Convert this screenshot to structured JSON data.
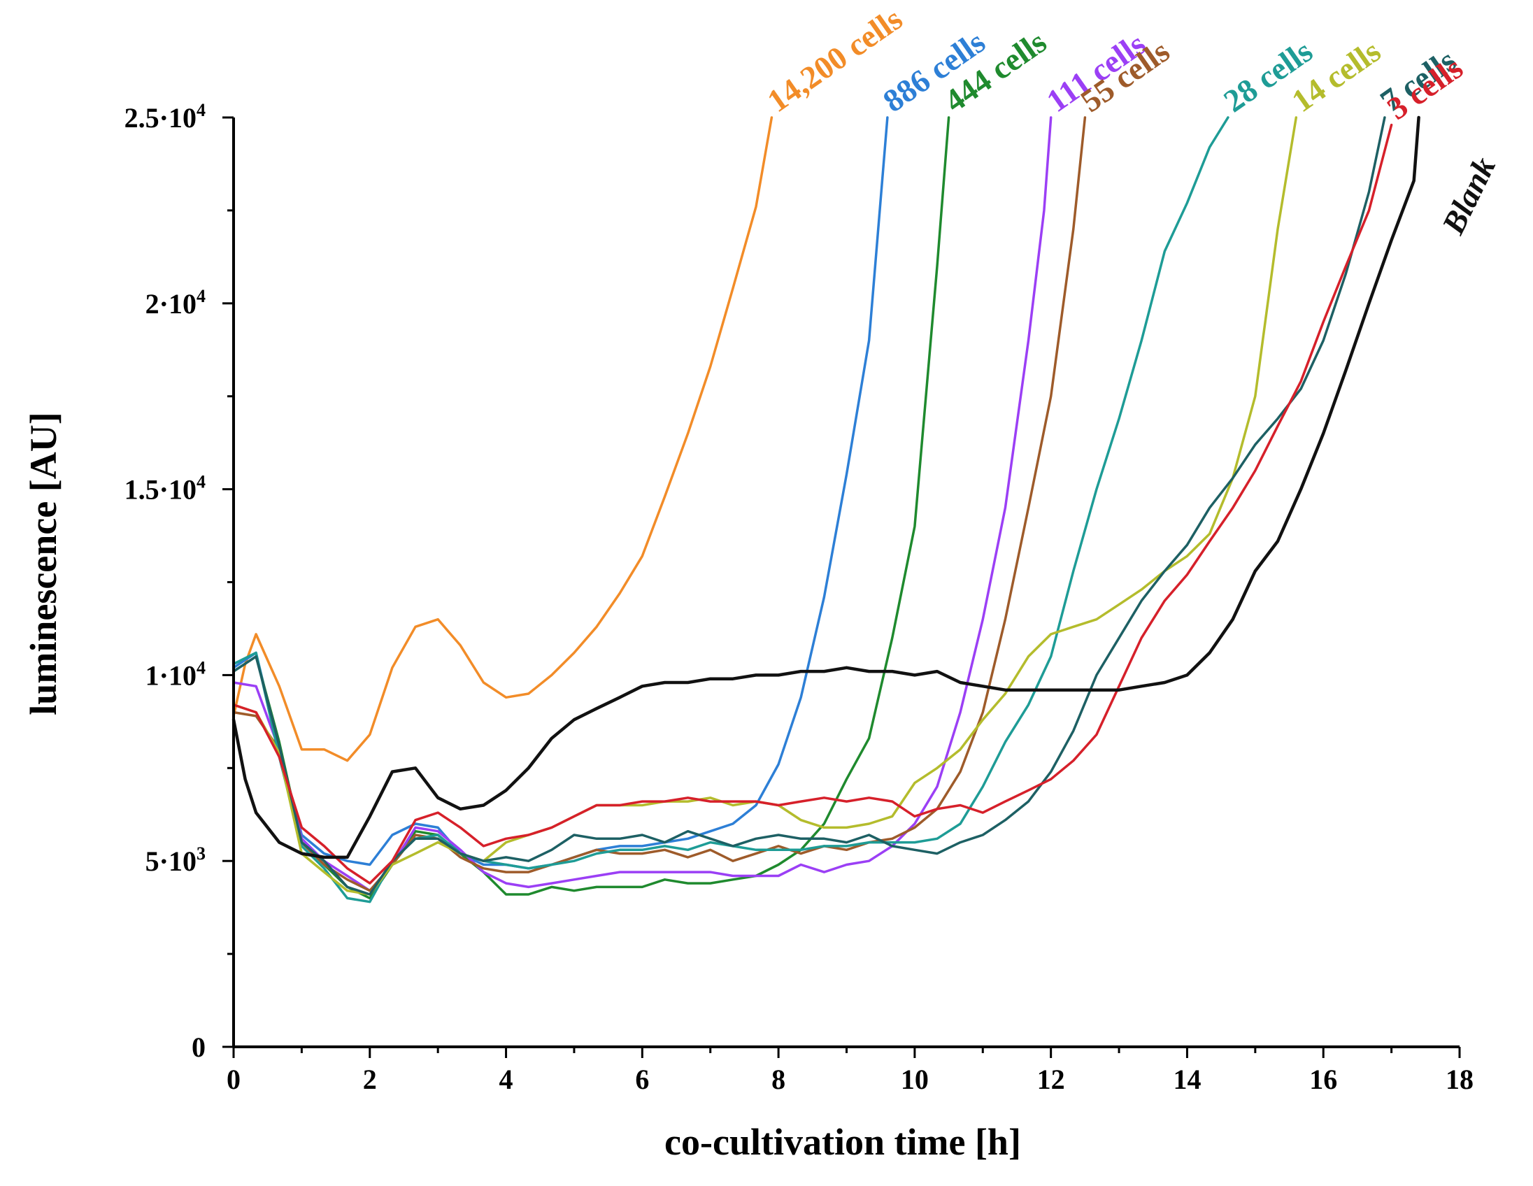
{
  "chart_data": {
    "type": "line",
    "title": "",
    "xlabel": "co-cultivation time [h]",
    "ylabel": "luminescence [AU]",
    "xlim": [
      0,
      18
    ],
    "ylim": [
      0,
      25000
    ],
    "x_ticks": [
      0,
      2,
      4,
      6,
      8,
      10,
      12,
      14,
      16,
      18
    ],
    "x_tick_labels": [
      "0",
      "2",
      "4",
      "6",
      "8",
      "10",
      "12",
      "14",
      "16",
      "18"
    ],
    "y_ticks": [
      {
        "value": 0,
        "base": "0",
        "exp": ""
      },
      {
        "value": 5000,
        "base": "5·10",
        "exp": "3"
      },
      {
        "value": 10000,
        "base": "1·10",
        "exp": "4"
      },
      {
        "value": 15000,
        "base": "1.5·10",
        "exp": "4"
      },
      {
        "value": 20000,
        "base": "2·10",
        "exp": "4"
      },
      {
        "value": 25000,
        "base": "2.5·10",
        "exp": "4"
      }
    ],
    "series": [
      {
        "name": "14,200 cells",
        "color": "#f28c28",
        "x": [
          0,
          0.17,
          0.33,
          0.67,
          1,
          1.33,
          1.67,
          2,
          2.33,
          2.67,
          3,
          3.33,
          3.67,
          4,
          4.33,
          4.67,
          5,
          5.33,
          5.67,
          6,
          6.33,
          6.67,
          7,
          7.33,
          7.67,
          7.9
        ],
        "y": [
          8900,
          10300,
          11100,
          9700,
          8000,
          8000,
          7700,
          8400,
          10200,
          11300,
          11500,
          10800,
          9800,
          9400,
          9500,
          10000,
          10600,
          11300,
          12200,
          13200,
          14800,
          16500,
          18300,
          20400,
          22600,
          25000
        ]
      },
      {
        "name": "886 cells",
        "color": "#2d7fd6",
        "x": [
          0,
          0.33,
          0.67,
          1,
          1.33,
          1.67,
          2,
          2.33,
          2.67,
          3,
          3.33,
          3.67,
          4,
          4.33,
          4.67,
          5,
          5.33,
          5.67,
          6,
          6.33,
          6.67,
          7,
          7.33,
          7.67,
          8,
          8.33,
          8.67,
          9,
          9.33,
          9.6
        ],
        "y": [
          10200,
          10600,
          8000,
          5700,
          5200,
          5000,
          4900,
          5700,
          6000,
          5900,
          5200,
          4900,
          4900,
          4800,
          4900,
          5100,
          5300,
          5400,
          5400,
          5500,
          5600,
          5800,
          6000,
          6500,
          7600,
          9400,
          12100,
          15400,
          19000,
          25000
        ]
      },
      {
        "name": "444 cells",
        "color": "#1f8a2e",
        "x": [
          0,
          0.33,
          0.67,
          1,
          1.33,
          1.67,
          2,
          2.33,
          2.67,
          3,
          3.33,
          3.67,
          4,
          4.33,
          4.67,
          5,
          5.33,
          5.67,
          6,
          6.33,
          6.67,
          7,
          7.33,
          7.67,
          8,
          8.33,
          8.67,
          9,
          9.33,
          9.67,
          10,
          10.33,
          10.5
        ],
        "y": [
          10100,
          10500,
          8200,
          5500,
          4900,
          4300,
          4000,
          4900,
          5800,
          5700,
          5200,
          4700,
          4100,
          4100,
          4300,
          4200,
          4300,
          4300,
          4300,
          4500,
          4400,
          4400,
          4500,
          4600,
          4900,
          5300,
          6000,
          7200,
          8300,
          11000,
          14000,
          21000,
          25000
        ]
      },
      {
        "name": "111 cells",
        "color": "#9b3ff5",
        "x": [
          0,
          0.33,
          0.67,
          1,
          1.33,
          1.67,
          2,
          2.33,
          2.67,
          3,
          3.33,
          3.67,
          4,
          4.33,
          4.67,
          5,
          5.33,
          5.67,
          6,
          6.33,
          6.67,
          7,
          7.33,
          7.67,
          8,
          8.33,
          8.67,
          9,
          9.33,
          9.67,
          10,
          10.33,
          10.67,
          11,
          11.33,
          11.67,
          11.9,
          12
        ],
        "y": [
          9800,
          9700,
          8000,
          5600,
          5000,
          4600,
          4200,
          4900,
          5900,
          5800,
          5300,
          4700,
          4400,
          4300,
          4400,
          4500,
          4600,
          4700,
          4700,
          4700,
          4700,
          4700,
          4600,
          4600,
          4600,
          4900,
          4700,
          4900,
          5000,
          5400,
          6000,
          7000,
          9000,
          11500,
          14500,
          19000,
          22500,
          25000
        ]
      },
      {
        "name": "55 cells",
        "color": "#9e5b2a",
        "x": [
          0,
          0.33,
          0.67,
          1,
          1.33,
          1.67,
          2,
          2.33,
          2.67,
          3,
          3.33,
          3.67,
          4,
          4.33,
          4.67,
          5,
          5.33,
          5.67,
          6,
          6.33,
          6.67,
          7,
          7.33,
          7.67,
          8,
          8.33,
          8.67,
          9,
          9.33,
          9.67,
          10,
          10.33,
          10.67,
          11,
          11.33,
          11.67,
          12,
          12.33,
          12.5
        ],
        "y": [
          9000,
          8900,
          8000,
          5500,
          4900,
          4500,
          4200,
          4900,
          5700,
          5600,
          5100,
          4800,
          4700,
          4700,
          4900,
          5100,
          5300,
          5200,
          5200,
          5300,
          5100,
          5300,
          5000,
          5200,
          5400,
          5200,
          5400,
          5300,
          5500,
          5600,
          5900,
          6400,
          7400,
          9000,
          11500,
          14500,
          17500,
          22000,
          25000
        ]
      },
      {
        "name": "28 cells",
        "color": "#1e9c96",
        "x": [
          0,
          0.33,
          0.67,
          1,
          1.33,
          1.67,
          2,
          2.33,
          2.67,
          3,
          3.33,
          3.67,
          4,
          4.33,
          4.67,
          5,
          5.33,
          5.67,
          6,
          6.33,
          6.67,
          7,
          7.33,
          7.67,
          8,
          8.33,
          8.67,
          9,
          9.33,
          9.67,
          10,
          10.33,
          10.67,
          11,
          11.33,
          11.67,
          12,
          12.33,
          12.67,
          13,
          13.33,
          13.67,
          14,
          14.33,
          14.6
        ],
        "y": [
          10300,
          10600,
          7800,
          5400,
          4800,
          4000,
          3900,
          5000,
          5600,
          5700,
          5200,
          5000,
          4900,
          4800,
          4900,
          5000,
          5200,
          5300,
          5300,
          5400,
          5300,
          5500,
          5400,
          5300,
          5300,
          5300,
          5400,
          5400,
          5500,
          5500,
          5500,
          5600,
          6000,
          7000,
          8200,
          9200,
          10500,
          12800,
          15000,
          16900,
          19000,
          21400,
          22700,
          24200,
          25000
        ]
      },
      {
        "name": "14 cells",
        "color": "#b4bc2c",
        "x": [
          0,
          0.33,
          0.67,
          1,
          1.33,
          1.67,
          2,
          2.33,
          2.67,
          3,
          3.33,
          3.67,
          4,
          4.33,
          4.67,
          5,
          5.33,
          5.67,
          6,
          6.33,
          6.67,
          7,
          7.33,
          7.67,
          8,
          8.33,
          8.67,
          9,
          9.33,
          9.67,
          10,
          10.33,
          10.67,
          11,
          11.33,
          11.67,
          12,
          12.33,
          12.67,
          13,
          13.33,
          13.67,
          14,
          14.33,
          14.67,
          15,
          15.33,
          15.6
        ],
        "y": [
          9200,
          9000,
          7900,
          5200,
          4700,
          4200,
          4100,
          4900,
          5200,
          5500,
          5200,
          5000,
          5500,
          5700,
          5900,
          6200,
          6500,
          6500,
          6500,
          6600,
          6600,
          6700,
          6500,
          6600,
          6500,
          6100,
          5900,
          5900,
          6000,
          6200,
          7100,
          7500,
          8000,
          8800,
          9500,
          10500,
          11100,
          11300,
          11500,
          11900,
          12300,
          12800,
          13200,
          13800,
          15300,
          17500,
          22000,
          25000
        ]
      },
      {
        "name": "7 cells",
        "color": "#1d6064",
        "x": [
          0,
          0.33,
          0.67,
          1,
          1.33,
          1.67,
          2,
          2.33,
          2.67,
          3,
          3.33,
          3.67,
          4,
          4.33,
          4.67,
          5,
          5.33,
          5.67,
          6,
          6.33,
          6.67,
          7,
          7.33,
          7.67,
          8,
          8.33,
          8.67,
          9,
          9.33,
          9.67,
          10,
          10.33,
          10.67,
          11,
          11.33,
          11.67,
          12,
          12.33,
          12.67,
          13,
          13.33,
          13.67,
          14,
          14.33,
          14.67,
          15,
          15.33,
          15.67,
          16,
          16.33,
          16.67,
          16.9
        ],
        "y": [
          10100,
          10500,
          8100,
          5500,
          5000,
          4300,
          4100,
          5000,
          5600,
          5600,
          5200,
          5000,
          5100,
          5000,
          5300,
          5700,
          5600,
          5600,
          5700,
          5500,
          5800,
          5600,
          5400,
          5600,
          5700,
          5600,
          5600,
          5500,
          5700,
          5400,
          5300,
          5200,
          5500,
          5700,
          6100,
          6600,
          7400,
          8500,
          10000,
          11000,
          12000,
          12800,
          13500,
          14500,
          15300,
          16200,
          16900,
          17700,
          19000,
          20800,
          23000,
          25000
        ]
      },
      {
        "name": "3 cells",
        "color": "#d6202a",
        "x": [
          0,
          0.33,
          0.67,
          1,
          1.33,
          1.67,
          2,
          2.33,
          2.67,
          3,
          3.33,
          3.67,
          4,
          4.33,
          4.67,
          5,
          5.33,
          5.67,
          6,
          6.33,
          6.67,
          7,
          7.33,
          7.67,
          8,
          8.33,
          8.67,
          9,
          9.33,
          9.67,
          10,
          10.33,
          10.67,
          11,
          11.33,
          11.67,
          12,
          12.33,
          12.67,
          13,
          13.33,
          13.67,
          14,
          14.33,
          14.67,
          15,
          15.33,
          15.67,
          16,
          16.33,
          16.67,
          17
        ],
        "y": [
          9200,
          9000,
          7800,
          5900,
          5400,
          4800,
          4400,
          5000,
          6100,
          6300,
          5900,
          5400,
          5600,
          5700,
          5900,
          6200,
          6500,
          6500,
          6600,
          6600,
          6700,
          6600,
          6600,
          6600,
          6500,
          6600,
          6700,
          6600,
          6700,
          6600,
          6200,
          6400,
          6500,
          6300,
          6600,
          6900,
          7200,
          7700,
          8400,
          9700,
          11000,
          12000,
          12700,
          13600,
          14500,
          15500,
          16700,
          17900,
          19500,
          21000,
          22500,
          24800
        ]
      },
      {
        "name": "Blank",
        "color": "#111111",
        "x": [
          0,
          0.17,
          0.33,
          0.67,
          1,
          1.33,
          1.67,
          2,
          2.33,
          2.67,
          3,
          3.33,
          3.67,
          4,
          4.33,
          4.67,
          5,
          5.33,
          5.67,
          6,
          6.33,
          6.67,
          7,
          7.33,
          7.67,
          8,
          8.33,
          8.67,
          9,
          9.33,
          9.67,
          10,
          10.33,
          10.67,
          11,
          11.33,
          11.67,
          12,
          12.33,
          12.67,
          13,
          13.33,
          13.67,
          14,
          14.33,
          14.67,
          15,
          15.33,
          15.67,
          16,
          16.33,
          16.67,
          17,
          17.33,
          17.4
        ],
        "y": [
          8800,
          7200,
          6300,
          5500,
          5200,
          5100,
          5100,
          6200,
          7400,
          7500,
          6700,
          6400,
          6500,
          6900,
          7500,
          8300,
          8800,
          9100,
          9400,
          9700,
          9800,
          9800,
          9900,
          9900,
          10000,
          10000,
          10100,
          10100,
          10200,
          10100,
          10100,
          10000,
          10100,
          9800,
          9700,
          9600,
          9600,
          9600,
          9600,
          9600,
          9600,
          9700,
          9800,
          10000,
          10600,
          11500,
          12800,
          13600,
          15000,
          16500,
          18200,
          20000,
          21700,
          23300,
          25000
        ]
      }
    ]
  }
}
